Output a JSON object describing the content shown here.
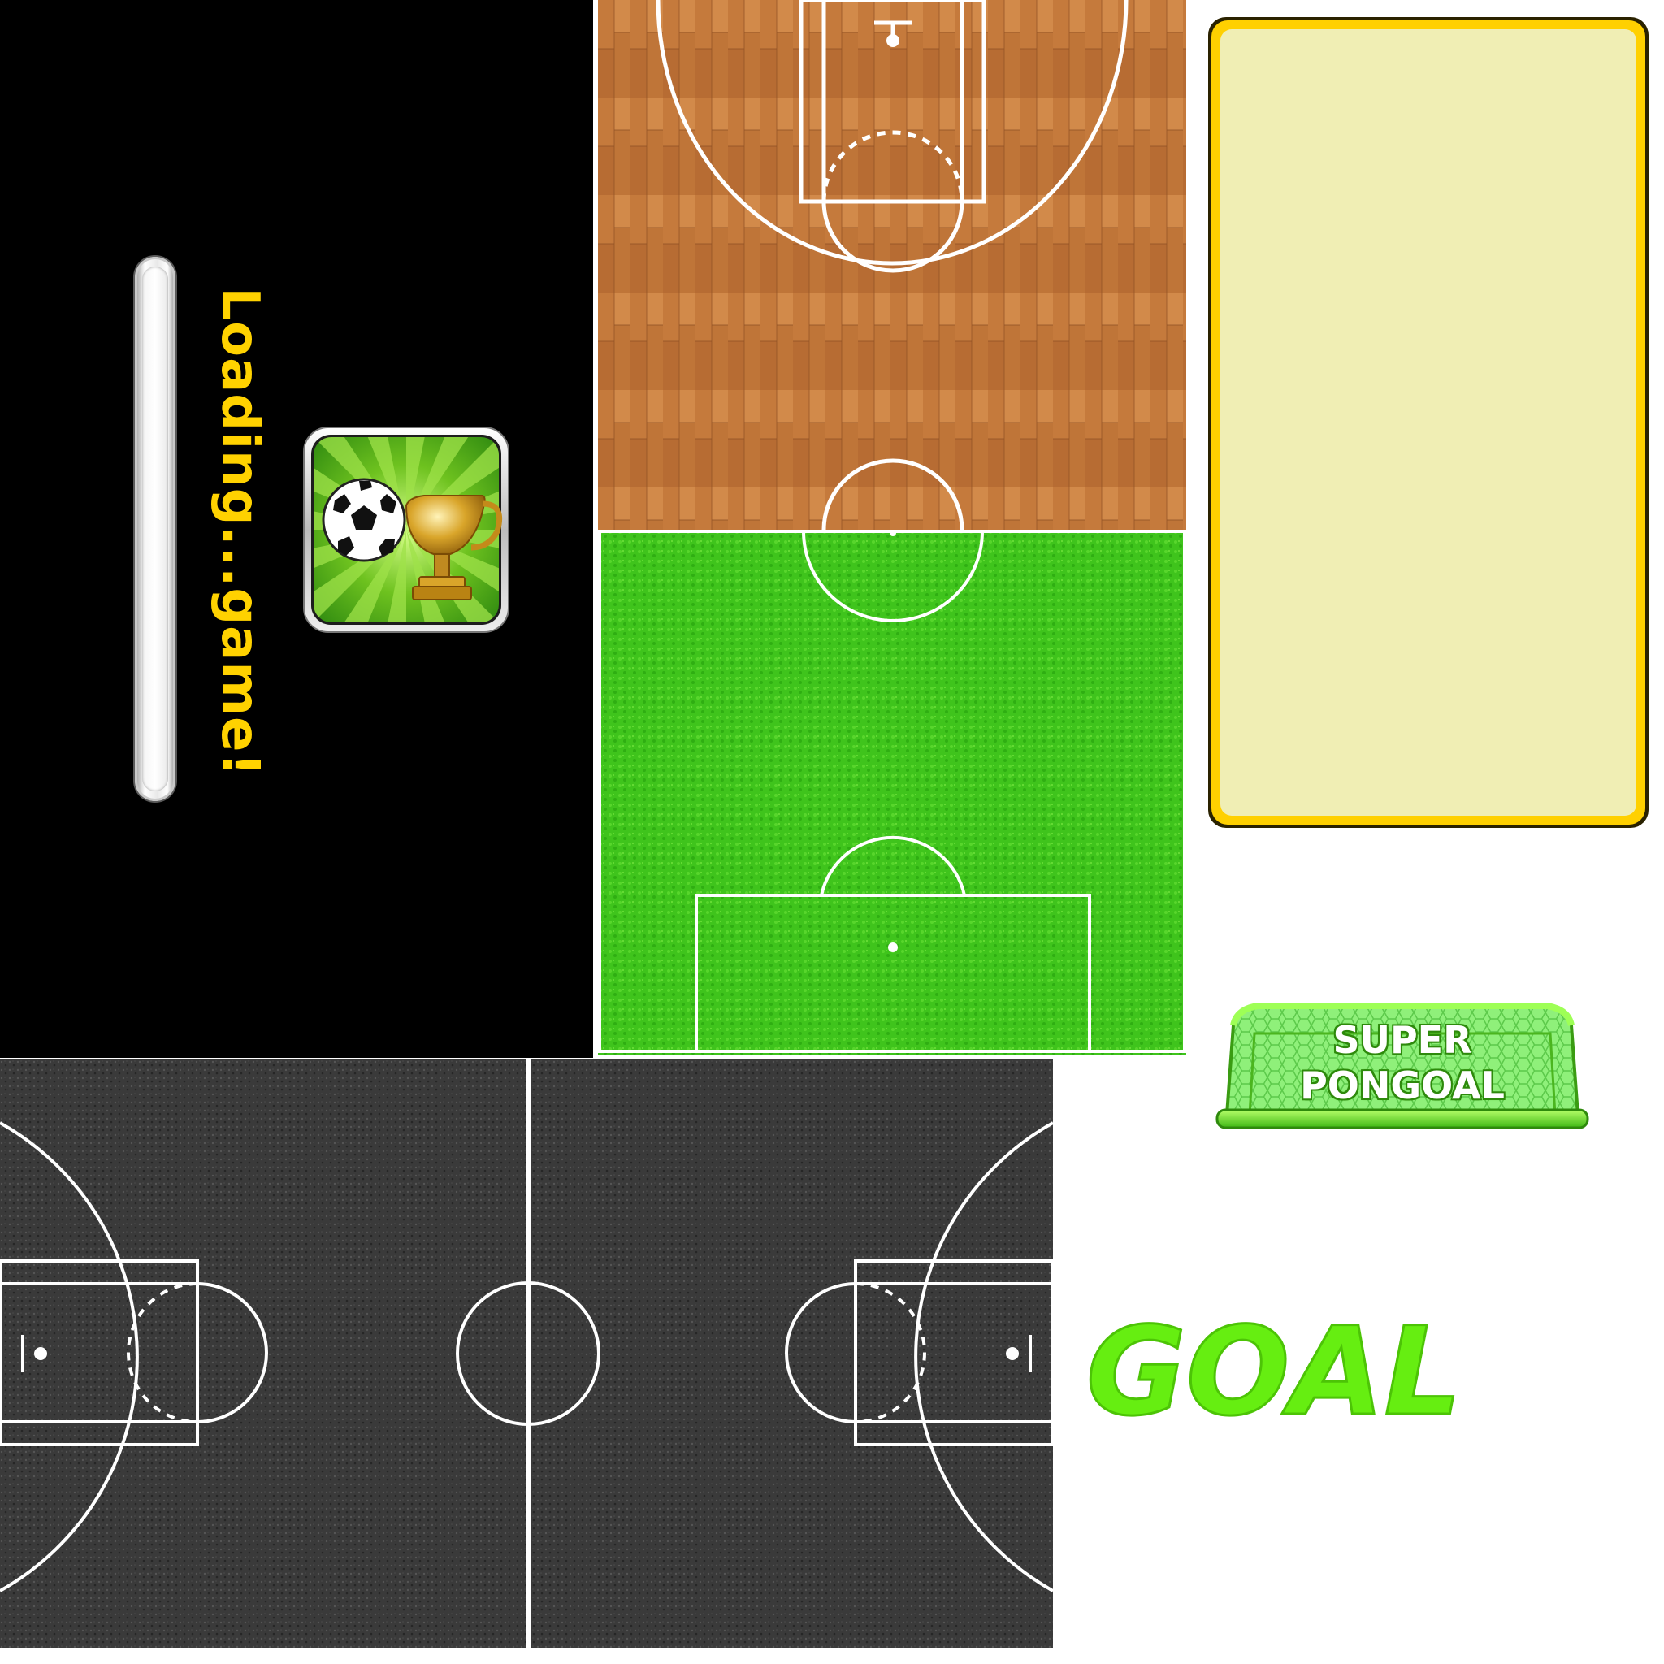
{
  "loading": {
    "text": "Loading...game!",
    "text_color": "#ffd200",
    "bar_progress": 0
  },
  "logo": {
    "line1": "SUPER",
    "line2": "PONGOAL"
  },
  "goal": {
    "text": "GOAL",
    "color": "#66ee11"
  },
  "card": {
    "fill": "#f0eeb4",
    "border": "#ffd000"
  },
  "courts": {
    "wood": "basketball-half-court-wood",
    "grass": "soccer-half-pitch-grass",
    "asphalt": "basketball-full-court-asphalt"
  }
}
